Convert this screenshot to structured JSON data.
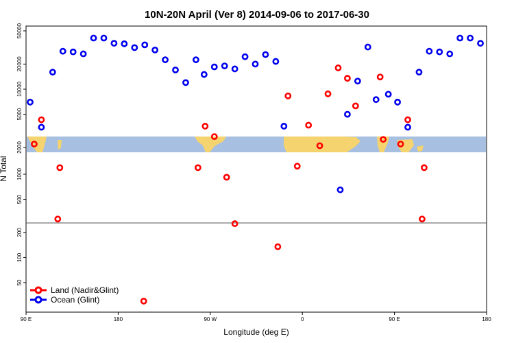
{
  "chart_data": {
    "type": "scatter",
    "title": "10N-20N April (Ver 8)   2014-09-06 to 2017-06-30",
    "xlabel": "Longitude (deg E)",
    "ylabel": "N Total",
    "x_ticks": [
      {
        "value": 90,
        "label": "90 E"
      },
      {
        "value": 180,
        "label": "180"
      },
      {
        "value": 270,
        "label": "90 W"
      },
      {
        "value": 360,
        "label": "0"
      },
      {
        "value": 450,
        "label": "90 E"
      },
      {
        "value": 540,
        "label": "180"
      }
    ],
    "xlim": [
      90,
      540
    ],
    "yscale": "log",
    "y_ticks_upper": [
      {
        "value": 50000,
        "label": "50000"
      },
      {
        "value": 20000,
        "label": "20000"
      },
      {
        "value": 10000,
        "label": "10000"
      },
      {
        "value": 5000,
        "label": "5000"
      },
      {
        "value": 2000,
        "label": "2000"
      }
    ],
    "y_ticks_lower": [
      {
        "value": 1000,
        "label": "1000"
      },
      {
        "value": 500,
        "label": "500"
      },
      {
        "value": 200,
        "label": "200"
      },
      {
        "value": 100,
        "label": "100"
      },
      {
        "value": 50,
        "label": "50"
      }
    ],
    "reference_line": 260,
    "map_band": {
      "description": "world map strip",
      "land_color": "#f5d36e",
      "ocean_color": "#a7bfe0"
    },
    "legend_position": "bottom-left",
    "series": [
      {
        "name": "Land (Nadir&Glint)",
        "color": "#ff0000",
        "panel": "mixed",
        "points": [
          {
            "x": 105,
            "y": 4300,
            "panel": "upper"
          },
          {
            "x": 98,
            "y": 2200,
            "panel": "upper"
          },
          {
            "x": 123,
            "y": 1200,
            "panel": "lower"
          },
          {
            "x": 121,
            "y": 290,
            "panel": "lower"
          },
          {
            "x": 205,
            "y": 30,
            "panel": "lower"
          },
          {
            "x": 258,
            "y": 1200,
            "panel": "lower"
          },
          {
            "x": 265,
            "y": 3600,
            "panel": "upper"
          },
          {
            "x": 274,
            "y": 2700,
            "panel": "upper"
          },
          {
            "x": 286,
            "y": 920,
            "panel": "lower"
          },
          {
            "x": 294,
            "y": 255,
            "panel": "lower"
          },
          {
            "x": 336,
            "y": 135,
            "panel": "lower"
          },
          {
            "x": 346,
            "y": 8300,
            "panel": "upper"
          },
          {
            "x": 355,
            "y": 1250,
            "panel": "lower"
          },
          {
            "x": 366,
            "y": 3700,
            "panel": "upper"
          },
          {
            "x": 377,
            "y": 2100,
            "panel": "upper"
          },
          {
            "x": 385,
            "y": 8800,
            "panel": "upper"
          },
          {
            "x": 395,
            "y": 18000,
            "panel": "upper"
          },
          {
            "x": 404,
            "y": 13500,
            "panel": "upper"
          },
          {
            "x": 412,
            "y": 6300,
            "panel": "upper"
          },
          {
            "x": 436,
            "y": 14000,
            "panel": "upper"
          },
          {
            "x": 439,
            "y": 2500,
            "panel": "upper"
          },
          {
            "x": 456,
            "y": 2200,
            "panel": "upper"
          },
          {
            "x": 463,
            "y": 4300,
            "panel": "upper"
          },
          {
            "x": 477,
            "y": 290,
            "panel": "lower"
          },
          {
            "x": 479,
            "y": 1200,
            "panel": "lower"
          }
        ]
      },
      {
        "name": "Ocean (Glint)",
        "color": "#0000ee",
        "panel": "mixed",
        "points": [
          {
            "x": 94,
            "y": 7000,
            "panel": "upper"
          },
          {
            "x": 105,
            "y": 3500,
            "panel": "upper"
          },
          {
            "x": 116,
            "y": 16000,
            "panel": "upper"
          },
          {
            "x": 126,
            "y": 28500,
            "panel": "upper"
          },
          {
            "x": 136,
            "y": 28000,
            "panel": "upper"
          },
          {
            "x": 146,
            "y": 26500,
            "panel": "upper"
          },
          {
            "x": 156,
            "y": 41000,
            "panel": "upper"
          },
          {
            "x": 166,
            "y": 41000,
            "panel": "upper"
          },
          {
            "x": 176,
            "y": 35500,
            "panel": "upper"
          },
          {
            "x": 186,
            "y": 35000,
            "panel": "upper"
          },
          {
            "x": 196,
            "y": 31500,
            "panel": "upper"
          },
          {
            "x": 206,
            "y": 34000,
            "panel": "upper"
          },
          {
            "x": 216,
            "y": 29500,
            "panel": "upper"
          },
          {
            "x": 226,
            "y": 22500,
            "panel": "upper"
          },
          {
            "x": 236,
            "y": 17000,
            "panel": "upper"
          },
          {
            "x": 246,
            "y": 12000,
            "panel": "upper"
          },
          {
            "x": 256,
            "y": 22500,
            "panel": "upper"
          },
          {
            "x": 264,
            "y": 15000,
            "panel": "upper"
          },
          {
            "x": 274,
            "y": 18500,
            "panel": "upper"
          },
          {
            "x": 284,
            "y": 19000,
            "panel": "upper"
          },
          {
            "x": 294,
            "y": 17500,
            "panel": "upper"
          },
          {
            "x": 304,
            "y": 24500,
            "panel": "upper"
          },
          {
            "x": 314,
            "y": 20000,
            "panel": "upper"
          },
          {
            "x": 324,
            "y": 26000,
            "panel": "upper"
          },
          {
            "x": 334,
            "y": 21500,
            "panel": "upper"
          },
          {
            "x": 342,
            "y": 3600,
            "panel": "upper"
          },
          {
            "x": 397,
            "y": 650,
            "panel": "lower"
          },
          {
            "x": 404,
            "y": 5000,
            "panel": "upper"
          },
          {
            "x": 414,
            "y": 12500,
            "panel": "upper"
          },
          {
            "x": 424,
            "y": 32000,
            "panel": "upper"
          },
          {
            "x": 432,
            "y": 7500,
            "panel": "upper"
          },
          {
            "x": 444,
            "y": 8700,
            "panel": "upper"
          },
          {
            "x": 453,
            "y": 7000,
            "panel": "upper"
          },
          {
            "x": 463,
            "y": 3500,
            "panel": "upper"
          },
          {
            "x": 474,
            "y": 16000,
            "panel": "upper"
          },
          {
            "x": 484,
            "y": 28500,
            "panel": "upper"
          },
          {
            "x": 494,
            "y": 28000,
            "panel": "upper"
          },
          {
            "x": 504,
            "y": 26500,
            "panel": "upper"
          },
          {
            "x": 514,
            "y": 41000,
            "panel": "upper"
          },
          {
            "x": 524,
            "y": 41000,
            "panel": "upper"
          },
          {
            "x": 534,
            "y": 35500,
            "panel": "upper"
          }
        ]
      }
    ]
  }
}
